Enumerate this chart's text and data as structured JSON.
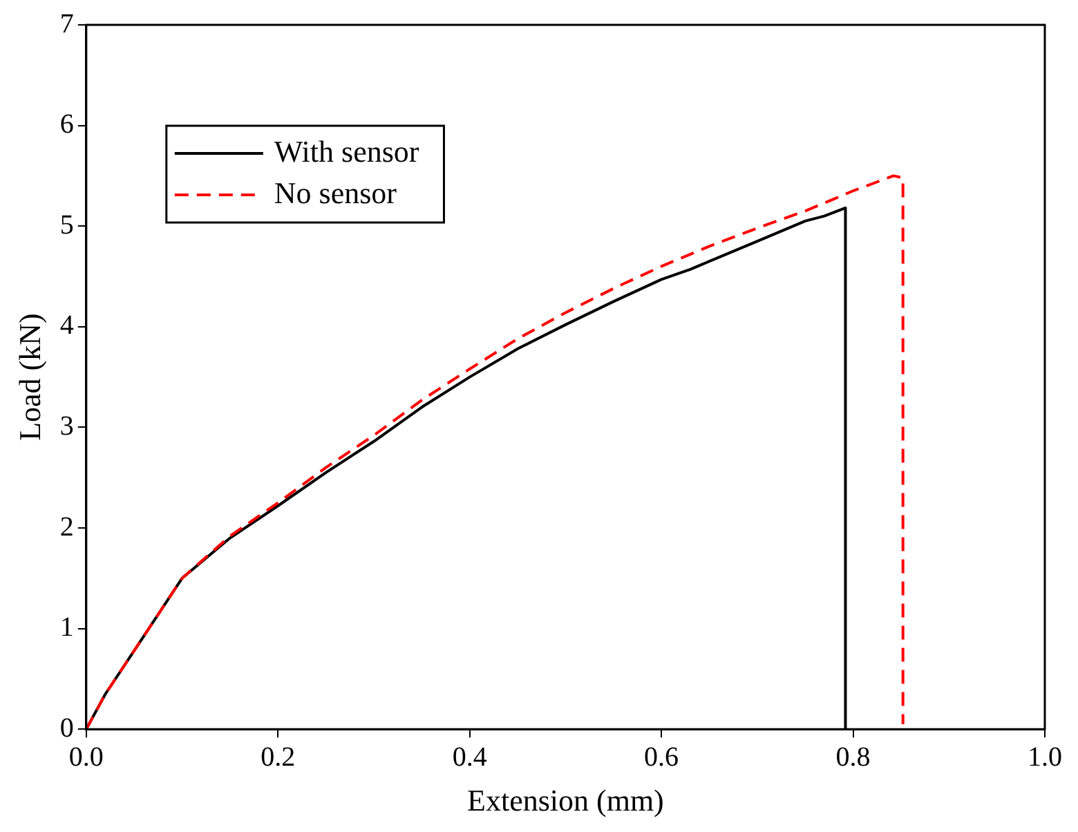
{
  "chart_data": {
    "type": "line",
    "xlabel": "Extension (mm)",
    "ylabel": "Load (kN)",
    "xlim": [
      0,
      1
    ],
    "xticks": [
      {
        "value": 0,
        "label": "0.0"
      },
      {
        "value": 0.2,
        "label": "0.2"
      },
      {
        "value": 0.4,
        "label": "0.4"
      },
      {
        "value": 0.6,
        "label": "0.6"
      },
      {
        "value": 0.8,
        "label": "0.8"
      },
      {
        "value": 1,
        "label": "1.0"
      }
    ],
    "ylim": [
      0,
      7
    ],
    "yticks": [
      0,
      1,
      2,
      3,
      4,
      5,
      6,
      7
    ],
    "grid": false,
    "legend": "top left",
    "marker": "none",
    "series": [
      {
        "name": "With sensor",
        "color": "#000000",
        "line_style": "solid",
        "x": [
          0,
          0.02,
          0.05,
          0.1,
          0.15,
          0.2,
          0.25,
          0.3,
          0.35,
          0.4,
          0.45,
          0.5,
          0.55,
          0.6,
          0.63,
          0.65,
          0.7,
          0.75,
          0.77,
          0.792,
          0.792
        ],
        "values": [
          0,
          0.35,
          0.78,
          1.5,
          1.9,
          2.22,
          2.55,
          2.86,
          3.2,
          3.5,
          3.78,
          4.02,
          4.25,
          4.47,
          4.57,
          4.65,
          4.85,
          5.05,
          5.1,
          5.18,
          0
        ]
      },
      {
        "name": "No sensor",
        "color": "#ff0000",
        "line_style": "dashed",
        "x": [
          0,
          0.02,
          0.05,
          0.1,
          0.15,
          0.2,
          0.25,
          0.3,
          0.35,
          0.4,
          0.45,
          0.5,
          0.55,
          0.6,
          0.65,
          0.7,
          0.75,
          0.8,
          0.842,
          0.852,
          0.852
        ],
        "values": [
          0,
          0.35,
          0.78,
          1.5,
          1.92,
          2.25,
          2.6,
          2.92,
          3.27,
          3.58,
          3.88,
          4.14,
          4.38,
          4.6,
          4.8,
          4.98,
          5.15,
          5.35,
          5.5,
          5.48,
          0.05
        ]
      }
    ]
  }
}
